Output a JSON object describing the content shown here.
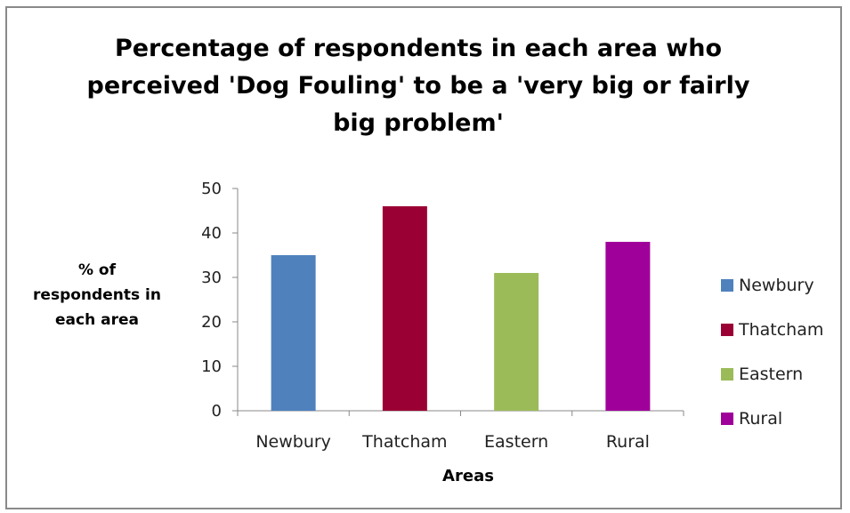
{
  "chart_data": {
    "type": "bar",
    "title": "Percentage of respondents in each area who perceived 'Dog Fouling' to be a 'very big or fairly big problem'",
    "title_lines": [
      "Percentage of respondents in each area who",
      "perceived 'Dog Fouling' to be a 'very big or fairly",
      "big problem'"
    ],
    "xlabel": "Areas",
    "ylabel": "% of respondents in each area",
    "ylabel_lines": [
      "% of",
      "respondents in",
      "each area"
    ],
    "categories": [
      "Newbury",
      "Thatcham",
      "Eastern",
      "Rural"
    ],
    "values": [
      35,
      46,
      31,
      38
    ],
    "colors": [
      "#4f81bd",
      "#9b0034",
      "#9bbb59",
      "#a0009a"
    ],
    "ylim": [
      0,
      50
    ],
    "yticks": [
      0,
      10,
      20,
      30,
      40,
      50
    ],
    "grid": false,
    "legend": {
      "placement": "right",
      "entries": [
        "Newbury",
        "Thatcham",
        "Eastern",
        "Rural"
      ]
    }
  }
}
